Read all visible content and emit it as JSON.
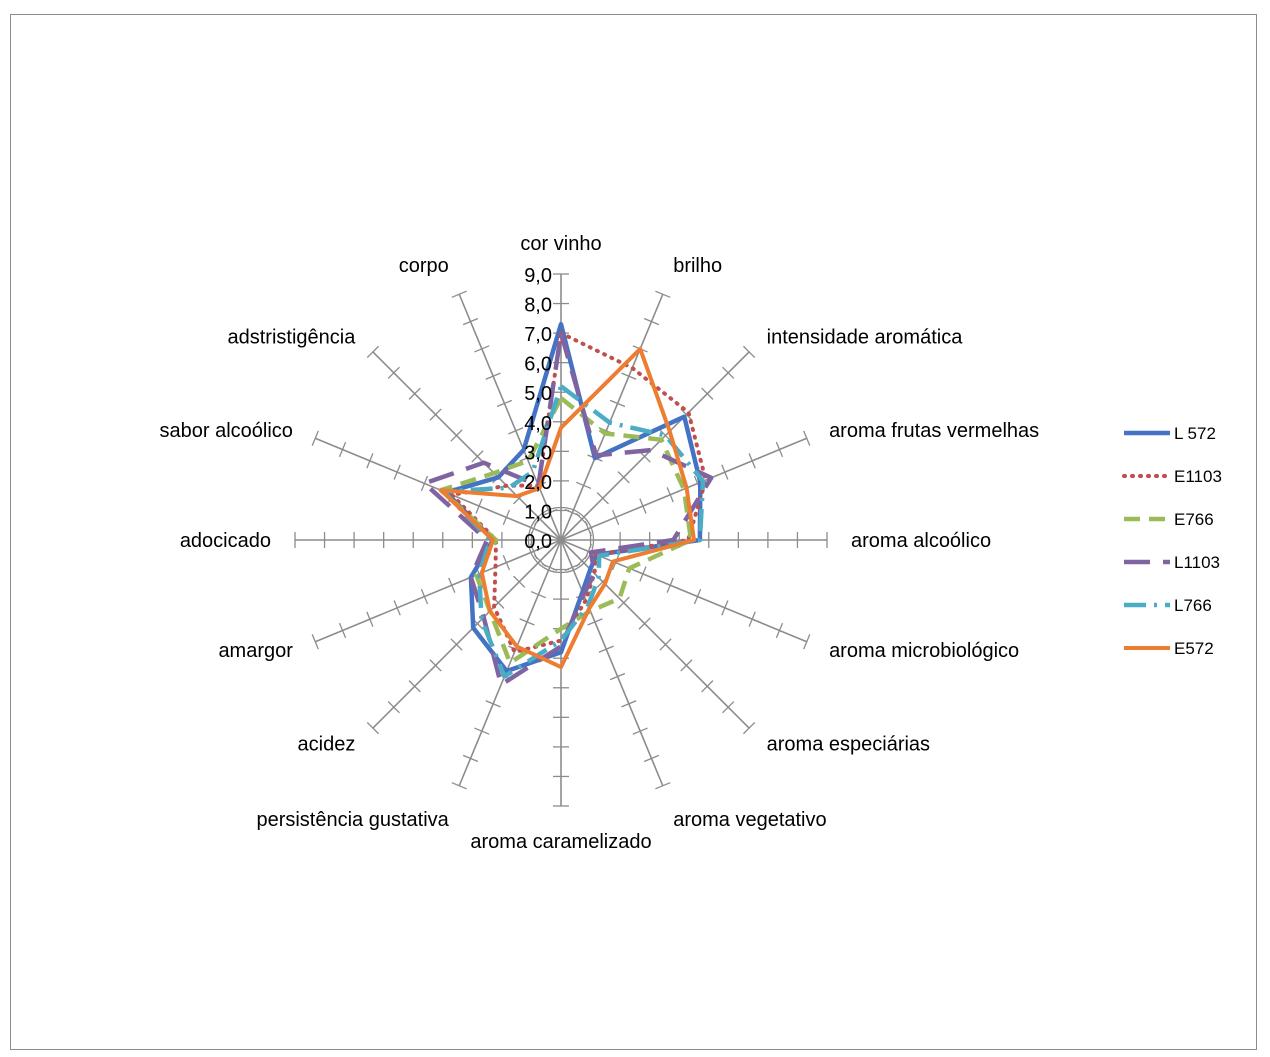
{
  "chart_data": {
    "type": "radar",
    "title": "",
    "categories": [
      "cor vinho",
      "brilho",
      "intensidade aromática",
      "aroma frutas vermelhas",
      "aroma alcoólico",
      "aroma microbiológico",
      "aroma especiárias",
      "aroma vegetativo",
      "aroma caramelizado",
      "persistência gustativa",
      "acidez",
      "amargor",
      "adocicado",
      "sabor alcoólico",
      "adstristigência",
      "corpo"
    ],
    "rlim": [
      0,
      9
    ],
    "ticks": [
      "0,0",
      "1,0",
      "2,0",
      "3,0",
      "4,0",
      "5,0",
      "6,0",
      "7,0",
      "8,0",
      "9,0"
    ],
    "grid": true,
    "legend_position": "right",
    "series": [
      {
        "name": "L 572",
        "color": "#4472C4",
        "dash": "solid",
        "width": 4.5,
        "values": [
          7.3,
          3.0,
          5.9,
          5.1,
          4.7,
          1.3,
          1.4,
          1.9,
          3.8,
          4.8,
          4.2,
          3.3,
          2.3,
          4.2,
          3.0,
          3.3
        ]
      },
      {
        "name": "E1103",
        "color": "#C0504D",
        "dash": "dotted",
        "width": 4,
        "values": [
          7.0,
          6.3,
          6.1,
          5.3,
          4.3,
          1.3,
          1.6,
          2.2,
          3.4,
          4.1,
          3.2,
          2.4,
          2.2,
          4.0,
          2.6,
          2.0
        ]
      },
      {
        "name": "E766",
        "color": "#9BBB59",
        "dash": "dashed",
        "width": 4.5,
        "values": [
          4.8,
          3.9,
          4.8,
          4.5,
          4.4,
          2.5,
          2.8,
          2.6,
          3.0,
          4.5,
          3.4,
          3.1,
          2.2,
          4.4,
          3.2,
          2.9
        ]
      },
      {
        "name": "L1103",
        "color": "#8064A2",
        "dash": "longdash",
        "width": 4.5,
        "values": [
          7.0,
          3.1,
          4.3,
          5.5,
          3.8,
          1.1,
          1.6,
          2.0,
          3.6,
          5.3,
          3.7,
          3.3,
          2.5,
          5.0,
          3.7,
          2.0
        ]
      },
      {
        "name": "L766",
        "color": "#4BACC6",
        "dash": "dashdot",
        "width": 4.5,
        "values": [
          5.2,
          4.3,
          5.0,
          5.2,
          4.7,
          1.4,
          1.8,
          2.4,
          3.4,
          5.0,
          3.8,
          3.0,
          2.4,
          4.3,
          2.5,
          2.5
        ]
      },
      {
        "name": "E572",
        "color": "#ED7D31",
        "dash": "solid",
        "width": 4,
        "values": [
          3.8,
          7.0,
          5.2,
          4.6,
          4.5,
          1.9,
          2.1,
          2.5,
          4.3,
          3.9,
          3.4,
          2.9,
          2.3,
          4.4,
          2.1,
          1.9
        ]
      }
    ]
  }
}
